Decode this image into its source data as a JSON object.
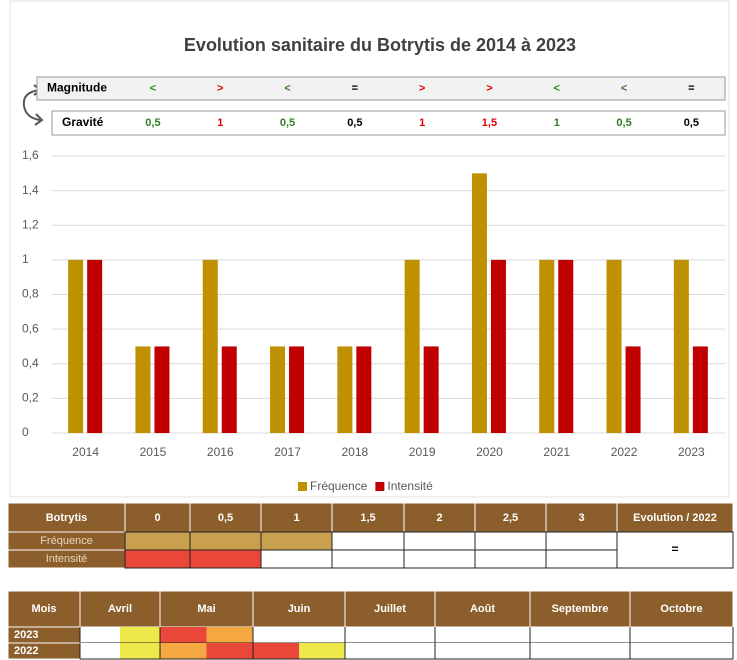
{
  "chart_data": {
    "type": "bar",
    "title": "Evolution sanitaire du Botrytis de 2014 à 2023",
    "categories": [
      "2014",
      "2015",
      "2016",
      "2017",
      "2018",
      "2019",
      "2020",
      "2021",
      "2022",
      "2023"
    ],
    "series": [
      {
        "name": "Fréquence",
        "color": "#bf9000",
        "values": [
          1,
          0.5,
          1,
          0.5,
          0.5,
          1,
          1.5,
          1,
          1,
          1
        ]
      },
      {
        "name": "Intensité",
        "color": "#c00000",
        "values": [
          1,
          0.5,
          0.5,
          0.5,
          0.5,
          0.5,
          1,
          1,
          0.5,
          0.5
        ]
      }
    ],
    "ylim": [
      0,
      1.6
    ],
    "yticks": [
      0,
      {
        "value": 0.2,
        "label": "0,2"
      },
      {
        "value": 0.4,
        "label": "0,4"
      },
      {
        "value": 0.6,
        "label": "0,6"
      },
      {
        "value": 0.8,
        "label": "0,8"
      },
      1,
      {
        "value": 1.2,
        "label": "1,2"
      },
      {
        "value": 1.4,
        "label": "1,4"
      },
      {
        "value": 1.6,
        "label": "1,6"
      }
    ],
    "grid": true,
    "legend": "bottom"
  },
  "magnitude": {
    "rows": [
      {
        "label": "Magnitude",
        "cells": [
          {
            "text": "<",
            "color": "#2e7d1f"
          },
          {
            "text": ">",
            "color": "#e00000"
          },
          {
            "text": "<",
            "color": "#2e7d1f"
          },
          {
            "text": "=",
            "color": "#000000"
          },
          {
            "text": ">",
            "color": "#e00000"
          },
          {
            "text": ">",
            "color": "#e00000"
          },
          {
            "text": "<",
            "color": "#2e7d1f"
          },
          {
            "text": "<",
            "color": "#2e7d1f"
          },
          {
            "text": "=",
            "color": "#000000"
          }
        ]
      },
      {
        "label": "Gravité",
        "cells": [
          {
            "text": "0,5",
            "color": "#2e7d1f"
          },
          {
            "text": "1",
            "color": "#e00000"
          },
          {
            "text": "0,5",
            "color": "#2e7d1f"
          },
          {
            "text": "0,5",
            "color": "#000000"
          },
          {
            "text": "1",
            "color": "#e00000"
          },
          {
            "text": "1,5",
            "color": "#e00000"
          },
          {
            "text": "1",
            "color": "#2e7d1f"
          },
          {
            "text": "0,5",
            "color": "#2e7d1f"
          },
          {
            "text": "0,5",
            "color": "#000000"
          }
        ]
      }
    ]
  },
  "botrytis": {
    "header": [
      "Botrytis",
      "0",
      "0,5",
      "1",
      "1,5",
      "2",
      "2,5",
      "3",
      "Evolution / 2022"
    ],
    "rows": [
      {
        "label": "Fréquence",
        "fills": [
          "#c9a04e",
          "#c9a04e",
          "#c9a04e",
          null,
          null,
          null,
          null
        ]
      },
      {
        "label": "Intensité",
        "fills": [
          "#e8473a",
          "#e8473a",
          null,
          null,
          null,
          null,
          null
        ]
      }
    ],
    "evolution": "="
  },
  "months": {
    "header": [
      "Mois",
      "Avril",
      "Mai",
      "Juin",
      "Juillet",
      "Août",
      "Septembre",
      "Octobre"
    ],
    "rows": [
      {
        "year": "2023",
        "halves": [
          null,
          "#eee84a",
          "#e8473a",
          "#f5a742",
          null,
          null,
          null,
          null,
          null,
          null,
          null,
          null,
          null,
          null
        ]
      },
      {
        "year": "2022",
        "halves": [
          null,
          "#eee84a",
          "#f5a742",
          "#e8473a",
          "#e8473a",
          "#eee84a",
          null,
          null,
          null,
          null,
          null,
          null,
          null,
          null
        ]
      }
    ]
  }
}
